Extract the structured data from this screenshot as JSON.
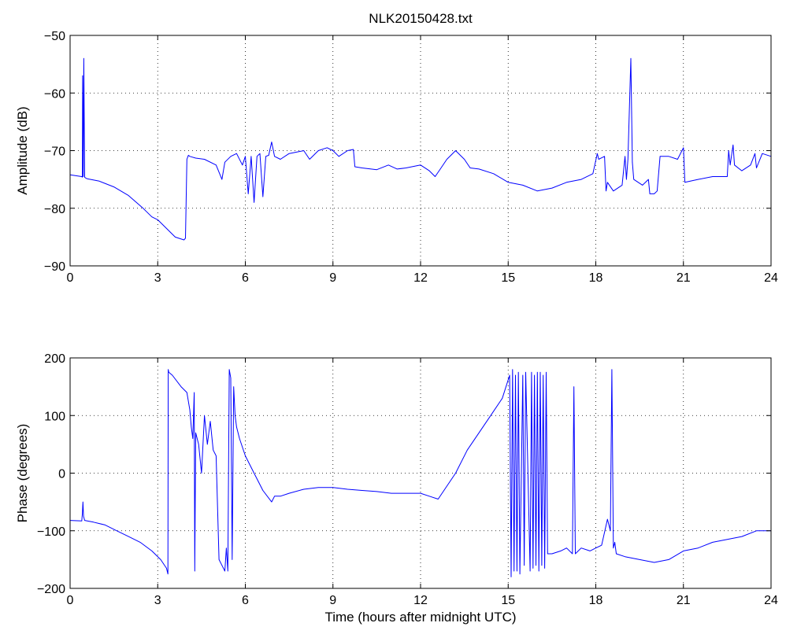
{
  "chart_data": [
    {
      "id": "amplitude",
      "type": "line",
      "title": "NLK20150428.txt",
      "xlabel": "",
      "ylabel": "Amplitude (dB)",
      "xlim": [
        0,
        24
      ],
      "ylim": [
        -90,
        -50
      ],
      "xticks": [
        0,
        3,
        6,
        9,
        12,
        15,
        18,
        21,
        24
      ],
      "yticks": [
        -90,
        -80,
        -70,
        -60,
        -50
      ],
      "xtick_labels": [
        "0",
        "3",
        "6",
        "9",
        "12",
        "15",
        "18",
        "21",
        "24"
      ],
      "ytick_labels": [
        "−90",
        "−80",
        "−70",
        "−60",
        "−50"
      ],
      "grid": true,
      "color": "#0000ff",
      "series": [
        {
          "name": "",
          "x": [
            0,
            0.4,
            0.42,
            0.43,
            0.45,
            0.47,
            0.5,
            0.52,
            0.55,
            0.6,
            1.0,
            1.5,
            2.0,
            2.5,
            2.8,
            3.0,
            3.3,
            3.6,
            3.9,
            3.95,
            4.0,
            4.05,
            4.1,
            4.3,
            4.6,
            5.0,
            5.2,
            5.3,
            5.5,
            5.7,
            5.9,
            6.0,
            6.1,
            6.2,
            6.3,
            6.4,
            6.5,
            6.6,
            6.7,
            6.8,
            6.9,
            7.0,
            7.2,
            7.5,
            7.8,
            8.0,
            8.2,
            8.5,
            8.8,
            9.0,
            9.2,
            9.5,
            9.7,
            9.75,
            10.0,
            10.5,
            10.9,
            11.2,
            11.5,
            12.0,
            12.3,
            12.5,
            12.7,
            12.9,
            13.2,
            13.5,
            13.7,
            14.0,
            14.5,
            15.0,
            15.5,
            16.0,
            16.5,
            17.0,
            17.5,
            17.9,
            18.05,
            18.1,
            18.3,
            18.35,
            18.4,
            18.6,
            18.9,
            19.0,
            19.05,
            19.1,
            19.2,
            19.25,
            19.3,
            19.6,
            19.8,
            19.85,
            20.0,
            20.1,
            20.2,
            20.5,
            20.8,
            21.0,
            21.05,
            21.5,
            22.0,
            22.5,
            22.55,
            22.6,
            22.7,
            22.75,
            23.0,
            23.3,
            23.45,
            23.5,
            23.7,
            24.0
          ],
          "values": [
            -74.2,
            -74.5,
            -74.6,
            -57.0,
            -74.5,
            -54.0,
            -74.6,
            -74.7,
            -74.8,
            -74.9,
            -75.3,
            -76.3,
            -77.8,
            -80.0,
            -81.5,
            -82.0,
            -83.5,
            -85.0,
            -85.5,
            -85.2,
            -71.5,
            -70.8,
            -71.0,
            -71.3,
            -71.5,
            -72.5,
            -75.0,
            -72.0,
            -71.0,
            -70.5,
            -72.5,
            -71.0,
            -77.5,
            -71.0,
            -79.0,
            -71.0,
            -70.5,
            -78.0,
            -71.0,
            -70.8,
            -68.5,
            -71.0,
            -71.5,
            -70.5,
            -70.2,
            -70.0,
            -71.5,
            -70.0,
            -69.5,
            -70.0,
            -71.0,
            -70.0,
            -69.8,
            -72.8,
            -73.0,
            -73.3,
            -72.5,
            -73.2,
            -73.0,
            -72.5,
            -73.5,
            -74.5,
            -73.0,
            -71.5,
            -70.0,
            -71.5,
            -73.0,
            -73.2,
            -74.0,
            -75.5,
            -76.0,
            -77.0,
            -76.5,
            -75.5,
            -75.0,
            -74.0,
            -70.5,
            -71.5,
            -71.0,
            -77.0,
            -75.5,
            -77.0,
            -76.0,
            -71.0,
            -75.0,
            -71.5,
            -54.0,
            -72.0,
            -75.0,
            -76.0,
            -75.0,
            -77.5,
            -77.5,
            -77.0,
            -71.0,
            -71.0,
            -71.5,
            -69.5,
            -75.5,
            -75.0,
            -74.5,
            -74.5,
            -70.0,
            -72.5,
            -69.0,
            -72.5,
            -73.5,
            -72.5,
            -70.5,
            -73.0,
            -70.5,
            -71.0
          ]
        }
      ]
    },
    {
      "id": "phase",
      "type": "line",
      "title": "",
      "xlabel": "Time (hours after midnight UTC)",
      "ylabel": "Phase (degrees)",
      "xlim": [
        0,
        24
      ],
      "ylim": [
        -200,
        200
      ],
      "xticks": [
        0,
        3,
        6,
        9,
        12,
        15,
        18,
        21,
        24
      ],
      "yticks": [
        -200,
        -100,
        0,
        100,
        200
      ],
      "xtick_labels": [
        "0",
        "3",
        "6",
        "9",
        "12",
        "15",
        "18",
        "21",
        "24"
      ],
      "ytick_labels": [
        "−200",
        "−100",
        "0",
        "100",
        "200"
      ],
      "grid": true,
      "color": "#0000ff",
      "series": [
        {
          "name": "",
          "x": [
            0,
            0.4,
            0.42,
            0.44,
            0.46,
            0.5,
            0.8,
            1.2,
            1.6,
            2.0,
            2.4,
            2.8,
            3.1,
            3.3,
            3.35,
            3.36,
            3.38,
            3.5,
            3.8,
            4.0,
            4.1,
            4.15,
            4.2,
            4.25,
            4.27,
            4.3,
            4.4,
            4.5,
            4.6,
            4.7,
            4.8,
            4.9,
            5.0,
            5.1,
            5.2,
            5.3,
            5.35,
            5.4,
            5.45,
            5.5,
            5.55,
            5.6,
            5.65,
            5.7,
            5.8,
            6.0,
            6.3,
            6.6,
            6.9,
            7.0,
            7.2,
            7.5,
            8.0,
            8.5,
            9.0,
            9.5,
            10.0,
            10.5,
            11.0,
            11.5,
            12.0,
            12.3,
            12.6,
            12.8,
            13.2,
            13.6,
            14.0,
            14.4,
            14.8,
            15.05,
            15.1,
            15.15,
            15.2,
            15.25,
            15.3,
            15.35,
            15.4,
            15.5,
            15.55,
            15.6,
            15.75,
            15.8,
            15.85,
            15.9,
            15.95,
            16.0,
            16.05,
            16.1,
            16.15,
            16.2,
            16.25,
            16.3,
            16.35,
            16.5,
            16.8,
            17.0,
            17.2,
            17.25,
            17.3,
            17.5,
            17.8,
            18.0,
            18.2,
            18.4,
            18.5,
            18.55,
            18.6,
            18.65,
            18.7,
            19.0,
            19.5,
            20.0,
            20.5,
            21.0,
            21.5,
            22.0,
            22.5,
            23.0,
            23.5,
            24.0
          ],
          "values": [
            -82,
            -83,
            -70,
            -50,
            -75,
            -82,
            -85,
            -90,
            -100,
            -110,
            -120,
            -135,
            -150,
            -165,
            -175,
            180,
            175,
            170,
            150,
            140,
            110,
            80,
            60,
            140,
            -170,
            70,
            50,
            0,
            100,
            50,
            90,
            40,
            30,
            -150,
            -160,
            -170,
            -130,
            -170,
            180,
            165,
            -150,
            150,
            100,
            80,
            60,
            30,
            0,
            -30,
            -50,
            -40,
            -40,
            -35,
            -28,
            -25,
            -25,
            -28,
            -30,
            -32,
            -35,
            -35,
            -35,
            -40,
            -45,
            -30,
            0,
            40,
            70,
            100,
            130,
            170,
            -180,
            180,
            -170,
            170,
            -170,
            175,
            -175,
            170,
            -160,
            175,
            -170,
            175,
            -165,
            170,
            -160,
            175,
            -170,
            175,
            -160,
            170,
            -165,
            175,
            -140,
            -140,
            -135,
            -130,
            -140,
            150,
            -140,
            -130,
            -135,
            -130,
            -125,
            -80,
            -100,
            180,
            -130,
            -120,
            -140,
            -145,
            -150,
            -155,
            -150,
            -135,
            -130,
            -120,
            -115,
            -110,
            -100,
            -100
          ]
        }
      ]
    }
  ]
}
